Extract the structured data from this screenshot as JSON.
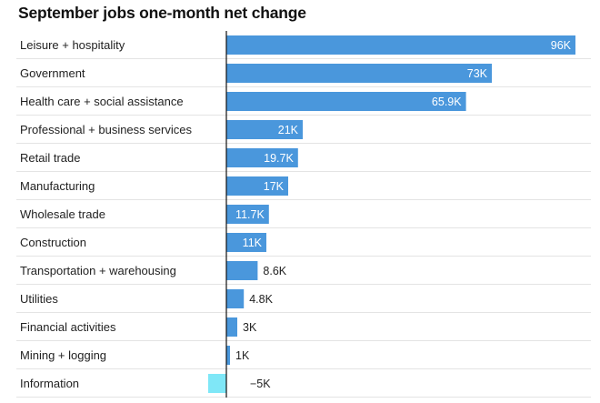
{
  "chart_data": {
    "type": "bar",
    "orientation": "horizontal",
    "title": "September jobs one-month net change",
    "xlabel": "",
    "ylabel": "",
    "xlim": [
      -5,
      96
    ],
    "categories": [
      "Leisure + hospitality",
      "Government",
      "Health care + social assistance",
      "Professional + business services",
      "Retail trade",
      "Manufacturing",
      "Wholesale trade",
      "Construction",
      "Transportation + warehousing",
      "Utilities",
      "Financial activities",
      "Mining + logging",
      "Information"
    ],
    "values": [
      96,
      73,
      65.9,
      21,
      19.7,
      17,
      11.7,
      11,
      8.6,
      4.8,
      3,
      1,
      -5
    ],
    "value_labels": [
      "96K",
      "73K",
      "65.9K",
      "21K",
      "19.7K",
      "17K",
      "11.7K",
      "11K",
      "8.6K",
      "4.8K",
      "3K",
      "1K",
      "−5K"
    ],
    "colors": {
      "positive": "#4a97dc",
      "negative": "#7fe7f7",
      "axis": "#111111",
      "grid": "#e4e4e4"
    }
  }
}
